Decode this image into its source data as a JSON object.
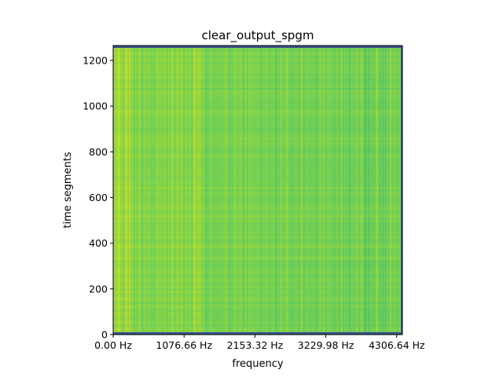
{
  "chart_data": {
    "type": "heatmap",
    "title": "clear_output_spgm",
    "xlabel": "frequency",
    "ylabel": "time segments",
    "x_tick_labels": [
      "0.00 Hz",
      "1076.66 Hz",
      "2153.32 Hz",
      "3229.98 Hz",
      "4306.64 Hz"
    ],
    "x_range_hz": [
      0,
      4392.77
    ],
    "y_ticks": [
      0,
      200,
      400,
      600,
      800,
      1000,
      1200
    ],
    "y_range": [
      0,
      1265
    ],
    "colormap": "viridis",
    "colors": {
      "dominant": "#7ad151",
      "high": "#dde318",
      "low": "#2a788e",
      "edge": "#3b528b"
    },
    "grid": false,
    "legend": "none"
  }
}
